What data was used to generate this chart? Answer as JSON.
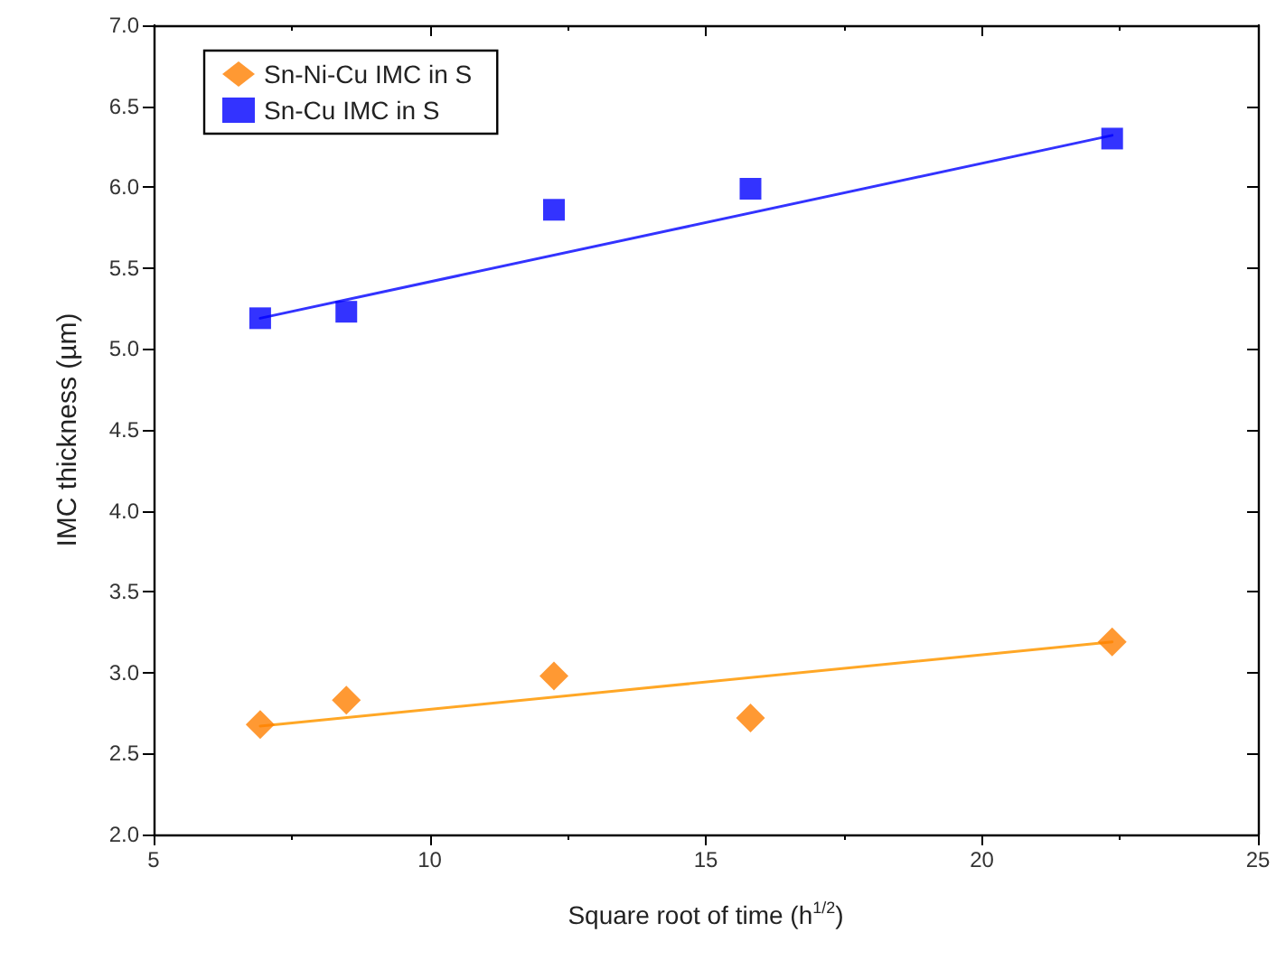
{
  "chart_data": {
    "type": "scatter",
    "xlabel": "Square root of time (h$^{1/2}$)",
    "ylabel": "IMC thickness (µm)",
    "xlim": [
      5,
      25
    ],
    "xticks": [
      5,
      10,
      15,
      20,
      25
    ],
    "ylim": [
      2.0,
      7.0
    ],
    "yticks": [
      {
        "value": 2.0,
        "label": "2.0"
      },
      {
        "value": 2.5,
        "label": "2.5"
      },
      {
        "value": 3.0,
        "label": "3.0"
      },
      {
        "value": 3.5,
        "label": "3.5"
      },
      {
        "value": 4.0,
        "label": "4.0"
      },
      {
        "value": 4.5,
        "label": "4.5"
      },
      {
        "value": 5.0,
        "label": "5.0"
      },
      {
        "value": 5.5,
        "label": "5.5"
      },
      {
        "value": 6.0,
        "label": "6.0"
      },
      {
        "value": 6.5,
        "label": "6.5"
      },
      {
        "value": 7.0,
        "label": "7.0"
      }
    ],
    "grid": false,
    "legend": "top left",
    "series": [
      {
        "name": "Sn-Ni-Cu IMC in S",
        "marker": "diamond",
        "color": "#ff7f00",
        "x": [
          6.93,
          8.49,
          12.25,
          15.81,
          22.36
        ],
        "values": [
          2.68,
          2.83,
          2.98,
          2.72,
          3.19
        ]
      },
      {
        "name": "Sn-Cu IMC in S",
        "marker": "square",
        "color": "#0000ff",
        "x": [
          6.93,
          8.49,
          12.25,
          15.81,
          22.36
        ],
        "values": [
          5.19,
          5.23,
          5.86,
          5.99,
          6.3
        ]
      },
      {
        "type": "line",
        "marker": "none",
        "color": "#ffa726",
        "x": [
          6.93,
          22.36
        ],
        "values": [
          2.67,
          3.19
        ]
      },
      {
        "type": "line",
        "marker": "none",
        "color": "#3333ff",
        "x": [
          6.93,
          22.36
        ],
        "values": [
          5.19,
          6.32
        ]
      }
    ]
  }
}
